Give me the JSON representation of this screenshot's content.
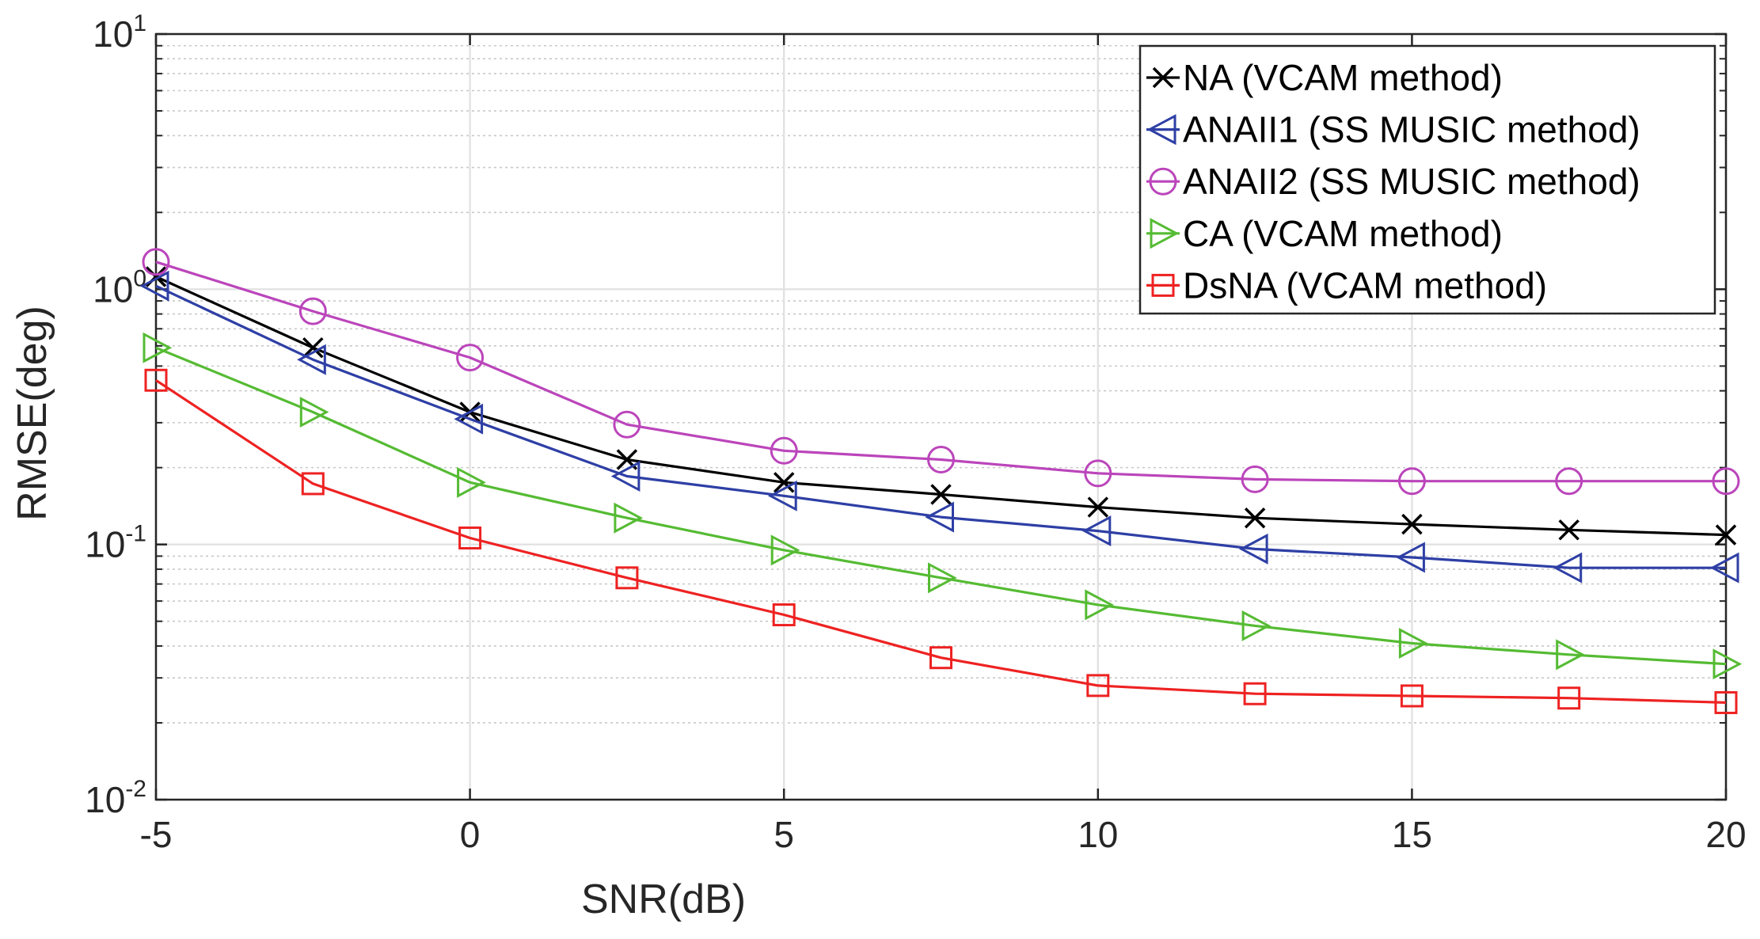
{
  "chart_data": {
    "type": "line",
    "title": "",
    "xlabel": "SNR(dB)",
    "ylabel": "RMSE(deg)",
    "xlim": [
      -5,
      20
    ],
    "ylim": [
      0.01,
      10
    ],
    "yscale": "log",
    "x_ticks": [
      -5,
      0,
      5,
      10,
      15,
      20
    ],
    "x_tick_labels": [
      "-5",
      "0",
      "5",
      "10",
      "15",
      "20"
    ],
    "y_ticks": [
      {
        "value": 10,
        "base": "10",
        "exp": "1"
      },
      {
        "value": 1,
        "base": "10",
        "exp": "0"
      },
      {
        "value": 0.1,
        "base": "10",
        "exp": "-1"
      },
      {
        "value": 0.01,
        "base": "10",
        "exp": "-2"
      }
    ],
    "grid": true,
    "minor_grid": true,
    "legend_position": "top-right",
    "x": [
      -5,
      -2.5,
      0,
      2.5,
      5,
      7.5,
      10,
      12.5,
      15,
      17.5,
      20
    ],
    "series": [
      {
        "name": "NA (VCAM method)",
        "color": "#000000",
        "marker": "x",
        "values": [
          1.12,
          0.59,
          0.33,
          0.215,
          0.175,
          0.157,
          0.14,
          0.127,
          0.12,
          0.114,
          0.109
        ]
      },
      {
        "name": "ANAII1 (SS MUSIC method)",
        "color": "#2e3fa5",
        "marker": "triangle-left",
        "values": [
          1.03,
          0.53,
          0.31,
          0.185,
          0.155,
          0.128,
          0.113,
          0.096,
          0.089,
          0.081,
          0.081
        ]
      },
      {
        "name": "ANAII2 (SS MUSIC method)",
        "color": "#bb45bb",
        "marker": "circle",
        "values": [
          1.28,
          0.82,
          0.54,
          0.295,
          0.233,
          0.215,
          0.19,
          0.18,
          0.177,
          0.177,
          0.177
        ]
      },
      {
        "name": "CA (VCAM method)",
        "color": "#55bb33",
        "marker": "triangle-right",
        "values": [
          0.59,
          0.33,
          0.175,
          0.127,
          0.095,
          0.074,
          0.058,
          0.048,
          0.041,
          0.037,
          0.034
        ]
      },
      {
        "name": "DsNA (VCAM method)",
        "color": "#ee2222",
        "marker": "square",
        "values": [
          0.44,
          0.173,
          0.106,
          0.074,
          0.053,
          0.036,
          0.028,
          0.026,
          0.0255,
          0.025,
          0.024
        ]
      }
    ]
  }
}
